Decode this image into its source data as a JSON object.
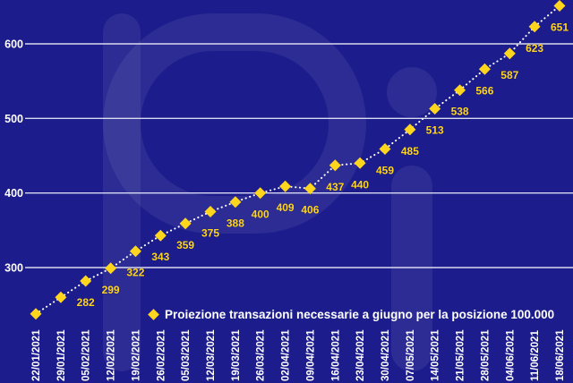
{
  "colors": {
    "background": "#1c1c8c",
    "accent_yellow": "#ffd51e",
    "gridline": "#d9daef",
    "text_white": "#ffffff",
    "line_white": "#ffffff"
  },
  "watermark": "Pi",
  "legend": {
    "marker_icon": "diamond-icon",
    "label": "Proiezione transazioni necessarie a giugno per la posizione 100.000"
  },
  "chart_data": {
    "type": "line",
    "style": "dotted white connector with yellow diamond markers and yellow value labels below points",
    "title": "",
    "xlabel": "",
    "ylabel": "",
    "grid": "horizontal",
    "legend_position": "inside-bottom-center",
    "y_ticks": [
      300,
      400,
      500,
      600
    ],
    "ylim": [
      145,
      659
    ],
    "x_labels": [
      "22/01/2021",
      "29/01/2021",
      "05/02/2021",
      "12/02/2021",
      "19/02/2021",
      "26/02/2021",
      "05/03/2021",
      "12/03/2021",
      "19/03/2021",
      "26/03/2021",
      "02/04/2021",
      "09/04/2021",
      "16/04/2021",
      "23/04/2021",
      "30/04/2021",
      "07/05/2021",
      "14/05/2021",
      "21/05/2021",
      "28/05/2021",
      "04/06/2021",
      "11/06/2021",
      "18/06/2021"
    ],
    "series": [
      {
        "name": "Proiezione transazioni necessarie a giugno per la posizione 100.000",
        "values": [
          238,
          260,
          282,
          299,
          322,
          343,
          359,
          375,
          388,
          400,
          409,
          406,
          437,
          440,
          459,
          485,
          513,
          538,
          566,
          587,
          623,
          651
        ],
        "value_labels": [
          "",
          "",
          "282",
          "299",
          "322",
          "343",
          "359",
          "375",
          "388",
          "400",
          "409",
          "406",
          "437",
          "440",
          "459",
          "485",
          "513",
          "538",
          "566",
          "587",
          "623",
          "651"
        ],
        "first_two_values_estimated_from_plot": true
      }
    ]
  }
}
